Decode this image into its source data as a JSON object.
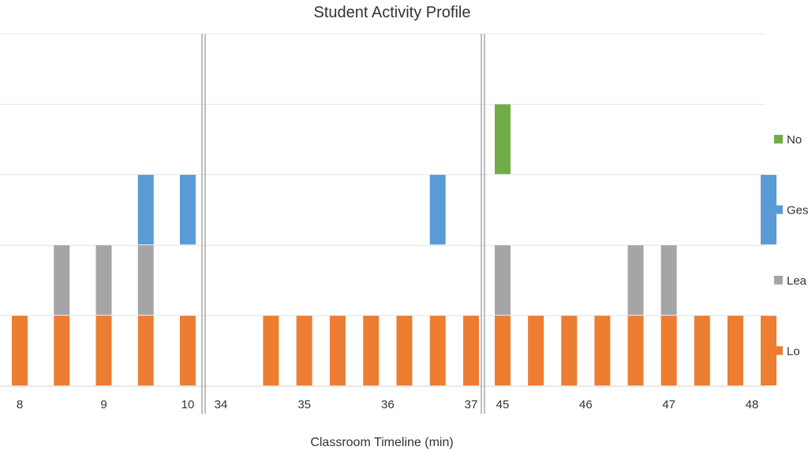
{
  "chart_data": {
    "type": "bar",
    "title": "Student Activity Profile",
    "xlabel": "Classroom Timeline (min)",
    "ylabel": "",
    "levels": 5,
    "grid": true,
    "legend_position": "right",
    "segments": [
      {
        "x_start": 8,
        "x_end": 10.1,
        "ticks": [
          8,
          9,
          10
        ]
      },
      {
        "x_start": 34,
        "x_end": 37.1,
        "ticks": [
          34,
          35,
          36,
          37
        ]
      },
      {
        "x_start": 45,
        "x_end": 48.1,
        "ticks": [
          45,
          46,
          47,
          48
        ]
      }
    ],
    "series": [
      {
        "name": "Lo",
        "color": "#ED7D31",
        "level": 1,
        "x": [
          8,
          8.5,
          9,
          9.5,
          10,
          34.6,
          35,
          35.4,
          35.8,
          36.2,
          36.6,
          37,
          45,
          45.4,
          45.8,
          46.2,
          46.6,
          47,
          47.4,
          47.8,
          48.2
        ]
      },
      {
        "name": "Lea",
        "color": "#A5A5A5",
        "level": 2,
        "x": [
          8.5,
          9,
          9.5,
          45,
          46.6,
          47
        ]
      },
      {
        "name": "Ges",
        "color": "#5B9BD5",
        "level": 3,
        "x": [
          9.5,
          10,
          36.6,
          48.2
        ]
      },
      {
        "name": "No",
        "color": "#70AD47",
        "level": 4,
        "x": [
          45
        ]
      }
    ]
  }
}
